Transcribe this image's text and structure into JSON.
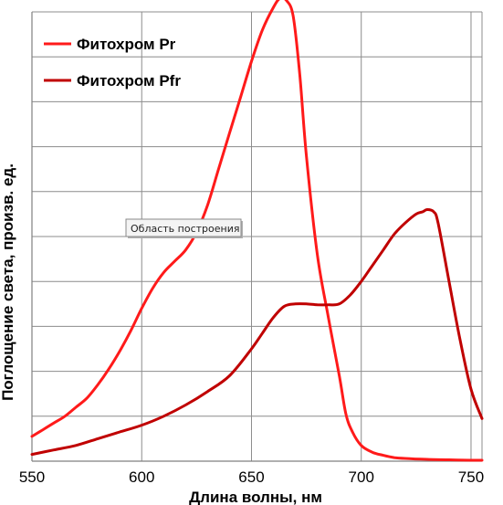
{
  "chart_data": {
    "type": "line",
    "xlabel": "Длина волны, нм",
    "ylabel": "Поглощение света, произв. ед.",
    "xlim": [
      550,
      755
    ],
    "ylim": [
      0,
      10
    ],
    "x_ticks": [
      550,
      600,
      650,
      700,
      750
    ],
    "grid": true,
    "legend_position": "top-left",
    "tooltip": "Область построения",
    "series": [
      {
        "name": "Фитохром Pr",
        "color": "#ff1a1a",
        "x": [
          550,
          555,
          560,
          565,
          570,
          575,
          580,
          585,
          590,
          595,
          600,
          605,
          610,
          615,
          620,
          625,
          630,
          635,
          640,
          645,
          650,
          655,
          660,
          663,
          666,
          669,
          672,
          675,
          680,
          685,
          690,
          693,
          696,
          700,
          705,
          710,
          715,
          720,
          730,
          740,
          750,
          755
        ],
        "y": [
          0.55,
          0.7,
          0.85,
          1.0,
          1.2,
          1.4,
          1.7,
          2.05,
          2.45,
          2.9,
          3.4,
          3.85,
          4.2,
          4.45,
          4.7,
          5.1,
          5.7,
          6.5,
          7.3,
          8.1,
          8.9,
          9.6,
          10.1,
          10.3,
          10.25,
          9.9,
          8.6,
          6.8,
          4.6,
          3.2,
          1.9,
          1.05,
          0.65,
          0.35,
          0.2,
          0.13,
          0.08,
          0.06,
          0.04,
          0.03,
          0.02,
          0.02
        ]
      },
      {
        "name": "Фитохром Pfr",
        "color": "#c00000",
        "x": [
          550,
          560,
          570,
          580,
          590,
          600,
          610,
          620,
          630,
          640,
          650,
          655,
          660,
          665,
          670,
          675,
          680,
          685,
          690,
          695,
          700,
          705,
          710,
          715,
          720,
          725,
          728,
          730,
          733,
          735,
          740,
          745,
          750,
          755
        ],
        "y": [
          0.15,
          0.25,
          0.35,
          0.5,
          0.65,
          0.8,
          1.0,
          1.25,
          1.55,
          1.9,
          2.5,
          2.85,
          3.2,
          3.45,
          3.5,
          3.5,
          3.48,
          3.48,
          3.5,
          3.7,
          4.0,
          4.35,
          4.7,
          5.05,
          5.3,
          5.5,
          5.55,
          5.6,
          5.55,
          5.3,
          4.0,
          2.7,
          1.6,
          0.95
        ]
      }
    ]
  }
}
